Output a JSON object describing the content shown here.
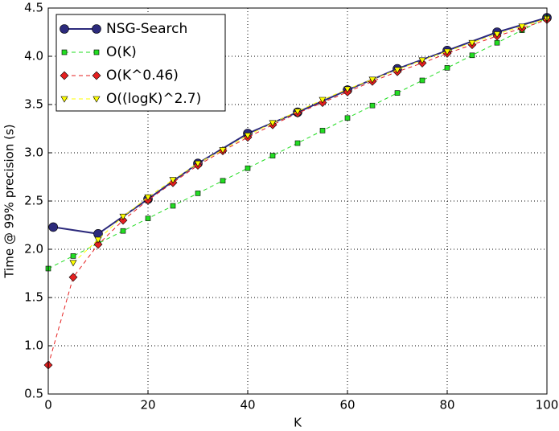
{
  "chart_data": {
    "type": "line",
    "xlabel": "K",
    "ylabel": "Time @ 99% precision (s)",
    "xlim": [
      0,
      100
    ],
    "ylim": [
      0.5,
      4.5
    ],
    "xticks": [
      0,
      20,
      40,
      60,
      80,
      100
    ],
    "yticks": [
      0.5,
      {
        "value": 1.0,
        "label": "1.0"
      },
      1.5,
      {
        "value": 2.0,
        "label": "2.0"
      },
      2.5,
      {
        "value": 3.0,
        "label": "3.0"
      },
      3.5,
      {
        "value": 4.0,
        "label": "4.0"
      },
      4.5
    ],
    "grid": true,
    "legend": "upper left",
    "series": [
      {
        "name": "NSG-Search",
        "color": "#2c2a7c",
        "marker": "circle",
        "linestyle": "solid",
        "x": [
          1,
          10,
          20,
          30,
          40,
          50,
          60,
          70,
          80,
          90,
          100
        ],
        "values": [
          2.23,
          2.16,
          2.52,
          2.89,
          3.2,
          3.42,
          3.65,
          3.87,
          4.06,
          4.25,
          4.4
        ]
      },
      {
        "name": "O(K)",
        "color": "#22dd22",
        "marker": "square",
        "linestyle": "dashed",
        "x": [
          0,
          5,
          10,
          15,
          20,
          25,
          30,
          35,
          40,
          45,
          50,
          55,
          60,
          65,
          70,
          75,
          80,
          85,
          90,
          95,
          100
        ],
        "values": [
          1.8,
          1.93,
          2.06,
          2.19,
          2.32,
          2.45,
          2.58,
          2.71,
          2.84,
          2.97,
          3.1,
          3.23,
          3.36,
          3.49,
          3.62,
          3.75,
          3.88,
          4.01,
          4.14,
          4.27,
          4.4
        ]
      },
      {
        "name": "O(K^0.46)",
        "color": "#e52020",
        "marker": "diamond",
        "linestyle": "dashed",
        "x": [
          0,
          5,
          10,
          15,
          20,
          25,
          30,
          35,
          40,
          45,
          50,
          55,
          60,
          65,
          70,
          75,
          80,
          85,
          90,
          95,
          100
        ],
        "values": [
          0.8,
          1.71,
          2.05,
          2.3,
          2.51,
          2.69,
          2.87,
          3.02,
          3.16,
          3.29,
          3.41,
          3.52,
          3.63,
          3.74,
          3.84,
          3.93,
          4.03,
          4.12,
          4.21,
          4.29,
          4.38
        ]
      },
      {
        "name": "O((logK)^2.7)",
        "color": "#ffff00",
        "marker": "triangle-down",
        "linestyle": "dashed",
        "x": [
          5,
          10,
          15,
          20,
          25,
          30,
          35,
          40,
          45,
          50,
          55,
          60,
          65,
          70,
          75,
          80,
          85,
          90,
          95,
          100
        ],
        "values": [
          1.86,
          2.1,
          2.34,
          2.54,
          2.72,
          2.89,
          3.03,
          3.18,
          3.31,
          3.43,
          3.55,
          3.66,
          3.76,
          3.86,
          3.96,
          4.05,
          4.14,
          4.23,
          4.31,
          4.39
        ]
      }
    ]
  }
}
